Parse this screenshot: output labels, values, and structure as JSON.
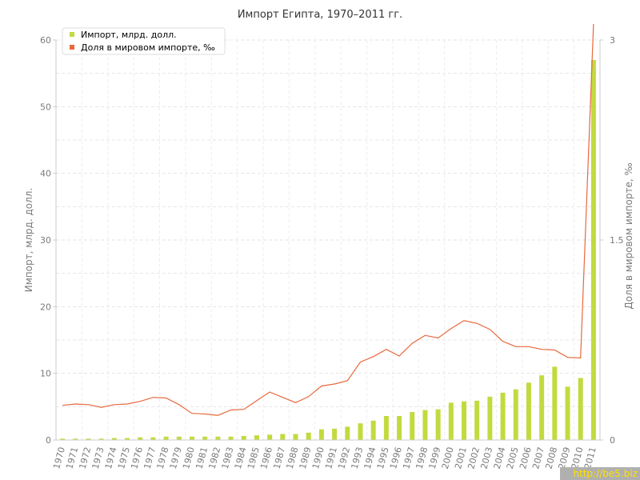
{
  "chart_data": {
    "type": "bar+line",
    "title": "Импорт Египта, 1970–2011 гг.",
    "categories": [
      "1970",
      "1971",
      "1972",
      "1973",
      "1974",
      "1975",
      "1976",
      "1977",
      "1978",
      "1979",
      "1980",
      "1981",
      "1982",
      "1983",
      "1984",
      "1985",
      "1986",
      "1987",
      "1988",
      "1989",
      "1990",
      "1991",
      "1992",
      "1993",
      "1994",
      "1995",
      "1996",
      "1997",
      "1998",
      "1999",
      "2000",
      "2001",
      "2002",
      "2003",
      "2004",
      "2005",
      "2006",
      "2007",
      "2008",
      "2009",
      "2010",
      "2011"
    ],
    "series": [
      {
        "name": "Импорт, млрд. долл.",
        "type": "bar",
        "axis": "left",
        "color": "#c3da3f",
        "values": [
          0.2,
          0.2,
          0.2,
          0.2,
          0.3,
          0.3,
          0.4,
          0.4,
          0.5,
          0.5,
          0.5,
          0.5,
          0.5,
          0.5,
          0.6,
          0.7,
          0.8,
          0.9,
          0.9,
          1.1,
          1.6,
          1.7,
          2.0,
          2.5,
          2.9,
          3.6,
          3.6,
          4.2,
          4.5,
          4.6,
          5.6,
          5.8,
          5.9,
          6.5,
          7.1,
          7.6,
          8.6,
          9.7,
          11.0,
          8.0,
          9.3,
          57.0
        ]
      },
      {
        "name": "Доля в мировом импорте, ‰",
        "type": "line",
        "axis": "right",
        "color": "#e8693d",
        "values": [
          0.26,
          0.27,
          0.265,
          0.245,
          0.265,
          0.27,
          0.29,
          0.32,
          0.315,
          0.265,
          0.2,
          0.195,
          0.185,
          0.225,
          0.23,
          0.295,
          0.36,
          0.32,
          0.28,
          0.325,
          0.405,
          0.42,
          0.445,
          0.585,
          0.625,
          0.68,
          0.63,
          0.725,
          0.785,
          0.765,
          0.835,
          0.895,
          0.875,
          0.83,
          0.74,
          0.7,
          0.7,
          0.68,
          0.675,
          0.62,
          0.615,
          3.12
        ]
      }
    ],
    "ylabel": "Импорт, млрд. долл.",
    "y2label": "Доля в мировом импорте, ‰",
    "ylim": [
      0,
      60
    ],
    "yticks": [
      "0",
      "10",
      "20",
      "30",
      "40",
      "50",
      "60"
    ],
    "y2lim": [
      0,
      3
    ],
    "y2ticks": [
      "0",
      "1.5",
      "3"
    ],
    "grid": true,
    "legend_position": "top-left"
  },
  "watermark": "http://be5.biz"
}
